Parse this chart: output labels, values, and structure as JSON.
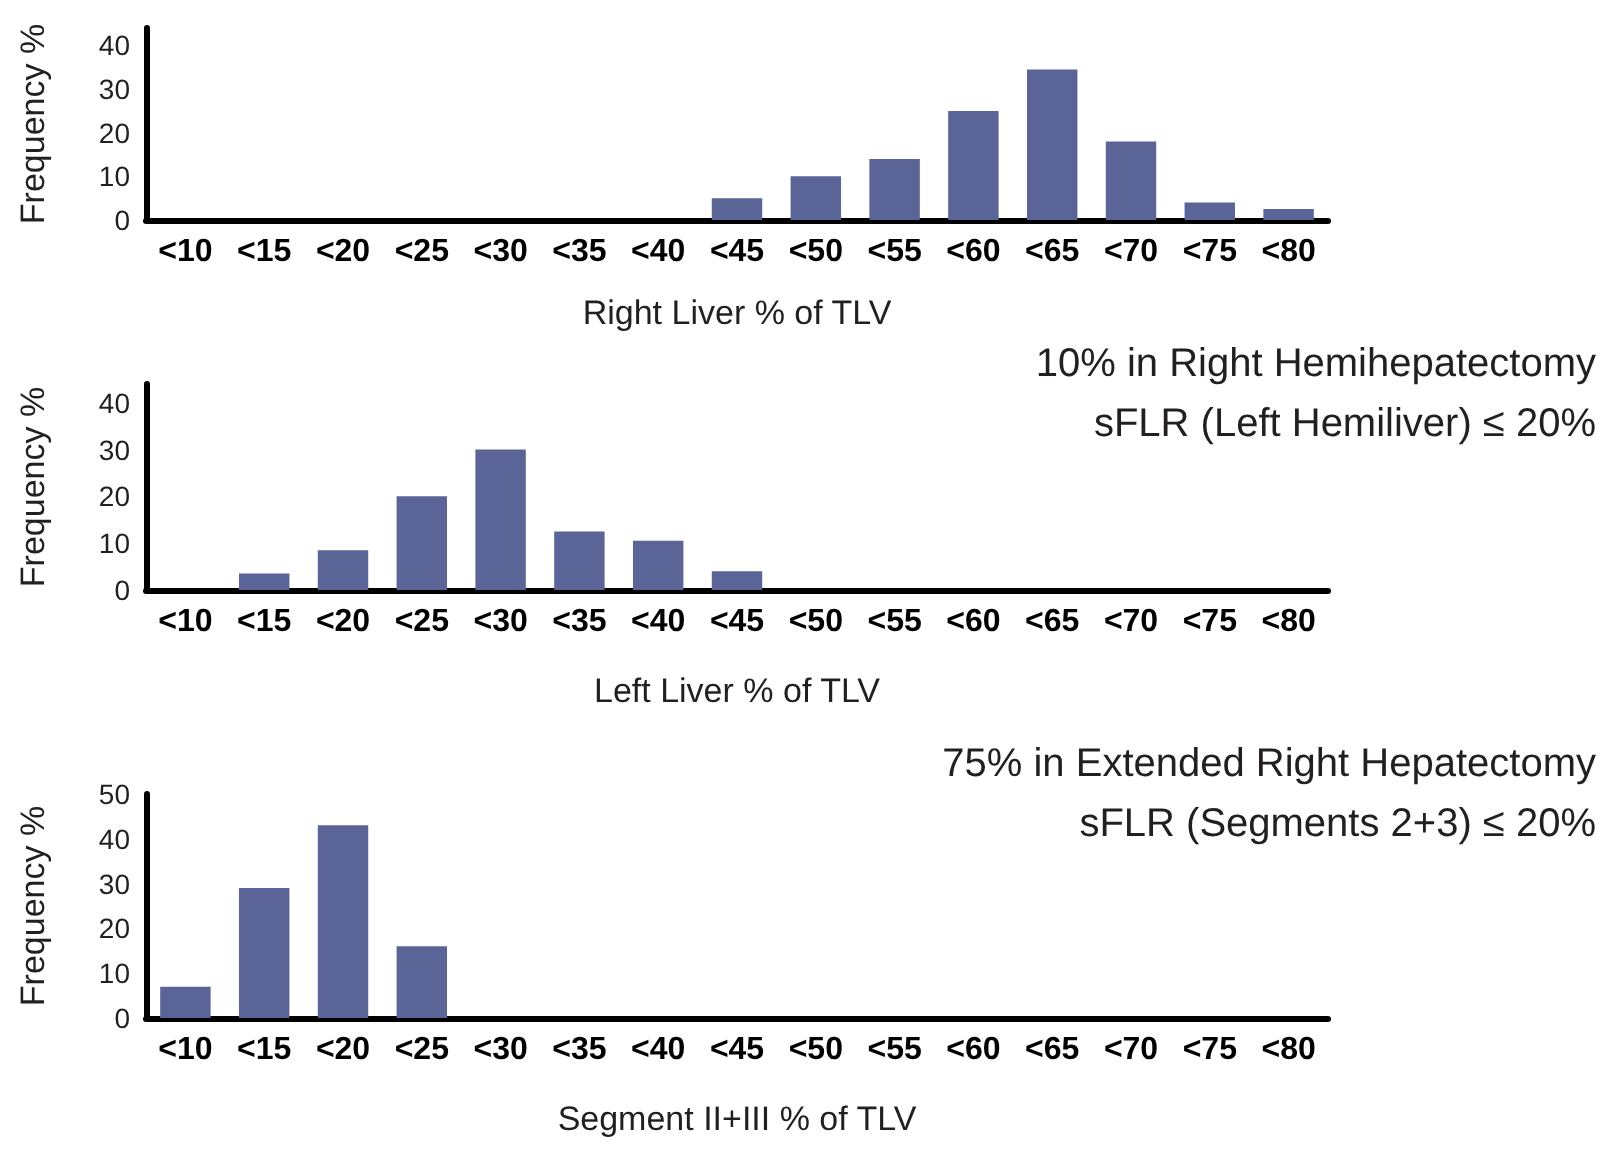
{
  "chart_data": [
    {
      "type": "bar",
      "xlabel": "Right Liver % of TLV",
      "ylabel": "Frequency %",
      "categories": [
        "<10",
        "<15",
        "<20",
        "<25",
        "<30",
        "<35",
        "<40",
        "<45",
        "<50",
        "<55",
        "<60",
        "<65",
        "<70",
        "<75",
        "<80"
      ],
      "series": [
        {
          "color": "#5b6496",
          "values": [
            0,
            0,
            0,
            0,
            0,
            0,
            0,
            5,
            10,
            14,
            25,
            34.5,
            18,
            4,
            2.5
          ]
        }
      ],
      "ylim": [
        0,
        44
      ],
      "yticks": [
        0,
        10,
        20,
        30,
        40
      ],
      "grid": false
    },
    {
      "type": "bar",
      "xlabel": "Left Liver % of TLV",
      "ylabel": "Frequency %",
      "annotations": [
        "10% in Right Hemihepatectomy",
        "sFLR (Left Hemiliver) ≤ 20%"
      ],
      "categories": [
        "<10",
        "<15",
        "<20",
        "<25",
        "<30",
        "<35",
        "<40",
        "<45",
        "<50",
        "<55",
        "<60",
        "<65",
        "<70",
        "<75",
        "<80"
      ],
      "series": [
        {
          "color": "#5b6496",
          "values": [
            0,
            3.5,
            8.5,
            20,
            30,
            12.5,
            10.5,
            4,
            0,
            0,
            0,
            0,
            0,
            0,
            0
          ]
        }
      ],
      "ylim": [
        0,
        44
      ],
      "yticks": [
        0,
        10,
        20,
        30,
        40
      ],
      "grid": false
    },
    {
      "type": "bar",
      "xlabel": "Segment II+III % of TLV",
      "ylabel": "Frequency %",
      "annotations": [
        "75% in Extended Right Hepatectomy",
        "sFLR (Segments 2+3) ≤ 20%"
      ],
      "categories": [
        "<10",
        "<15",
        "<20",
        "<25",
        "<30",
        "<35",
        "<40",
        "<45",
        "<50",
        "<55",
        "<60",
        "<65",
        "<70",
        "<75",
        "<80"
      ],
      "series": [
        {
          "color": "#5b6496",
          "values": [
            7,
            29,
            43,
            16,
            0,
            0,
            0,
            0,
            0,
            0,
            0,
            0,
            0,
            0,
            0
          ]
        }
      ],
      "ylim": [
        0,
        50
      ],
      "yticks": [
        0,
        10,
        20,
        30,
        40,
        50
      ],
      "grid": false
    }
  ]
}
